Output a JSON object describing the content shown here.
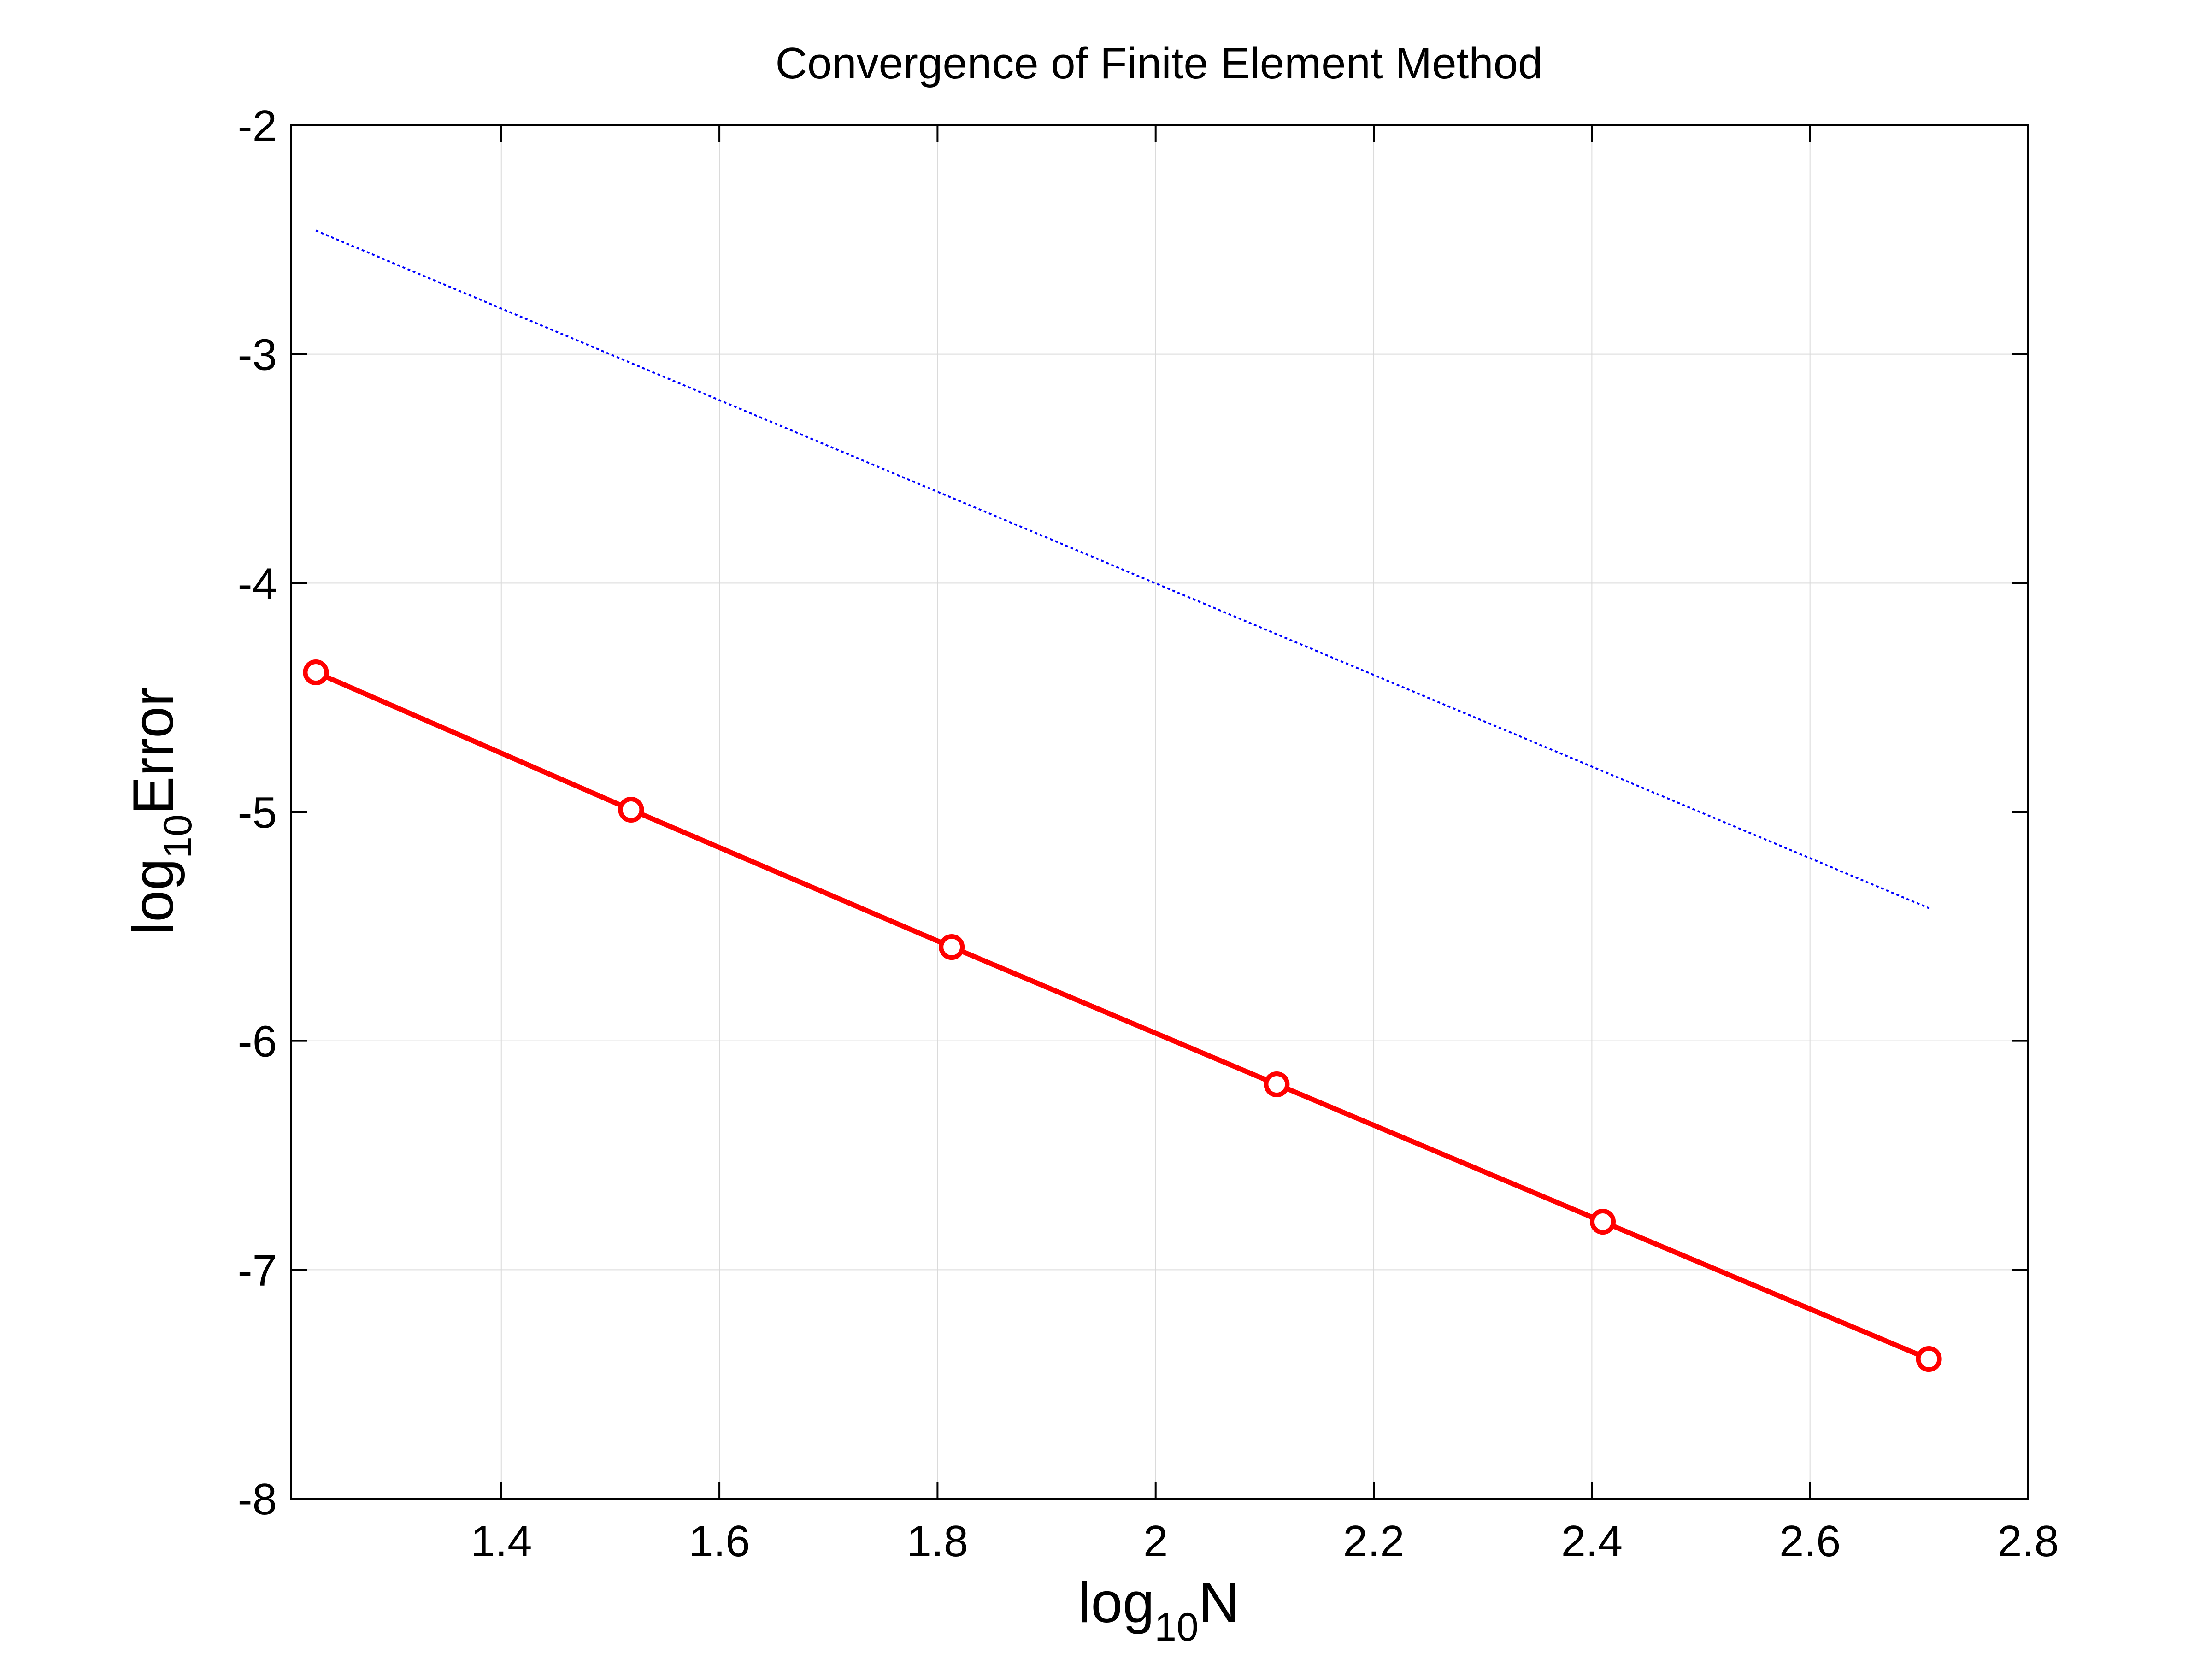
{
  "chart_data": {
    "type": "line",
    "title": "Convergence of Finite Element Method",
    "xlabel": {
      "base": "log",
      "subscript": "10",
      "main": "N"
    },
    "ylabel": {
      "base": "log",
      "subscript": "10",
      "main": "Error"
    },
    "xlim": [
      1.207,
      2.8
    ],
    "ylim": [
      -8,
      -2
    ],
    "x_ticks": [
      "1.4",
      "1.6",
      "1.8",
      "2",
      "2.2",
      "2.4",
      "2.6",
      "2.8"
    ],
    "y_ticks": [
      "-2",
      "-3",
      "-4",
      "-5",
      "-6",
      "-7",
      "-8"
    ],
    "grid": true,
    "series": [
      {
        "style": "solid-with-circle-markers",
        "color": "#ff0000",
        "x": [
          1.23,
          1.519,
          1.813,
          2.111,
          2.41,
          2.709
        ],
        "y": [
          -4.39,
          -4.99,
          -5.59,
          -6.19,
          -6.79,
          -7.39
        ]
      },
      {
        "style": "dotted",
        "color": "#0000ff",
        "x": [
          1.23,
          2.709
        ],
        "y": [
          -2.46,
          -5.42
        ]
      }
    ]
  }
}
